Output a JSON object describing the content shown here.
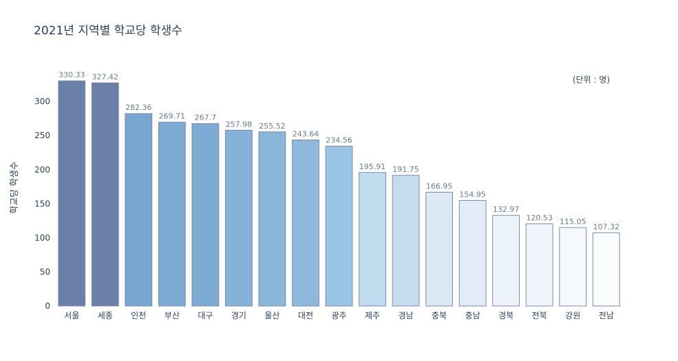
{
  "chart_data": {
    "type": "bar",
    "title": "2021년 지역별 학교당 학생수",
    "unit_note": "(단위 : 명)",
    "xlabel": "",
    "ylabel": "학교당 학생수",
    "ylim": [
      0,
      335
    ],
    "yticks": [
      0,
      50,
      100,
      150,
      200,
      250,
      300
    ],
    "grid": false,
    "categories": [
      "서울",
      "세종",
      "인천",
      "부산",
      "대구",
      "경기",
      "울산",
      "대전",
      "광주",
      "제주",
      "경남",
      "충북",
      "충남",
      "경북",
      "전북",
      "강원",
      "전남"
    ],
    "values": [
      330.33,
      327.42,
      282.36,
      269.71,
      267.7,
      257.98,
      255.52,
      243.64,
      234.56,
      195.91,
      191.75,
      166.95,
      154.95,
      132.97,
      120.53,
      115.05,
      107.32
    ],
    "colors": [
      "#6a80a8",
      "#6a80a8",
      "#77a6d0",
      "#7eabd3",
      "#7eabd3",
      "#85b2d9",
      "#89b6db",
      "#8eb9dd",
      "#9ac4e3",
      "#c1dcee",
      "#c5dcee",
      "#dce8f5",
      "#e2ecf7",
      "#ecf3fa",
      "#f0f6fc",
      "#f5f9fd",
      "#fafcfe"
    ],
    "bar_outline_color": "#7a8aa3"
  }
}
